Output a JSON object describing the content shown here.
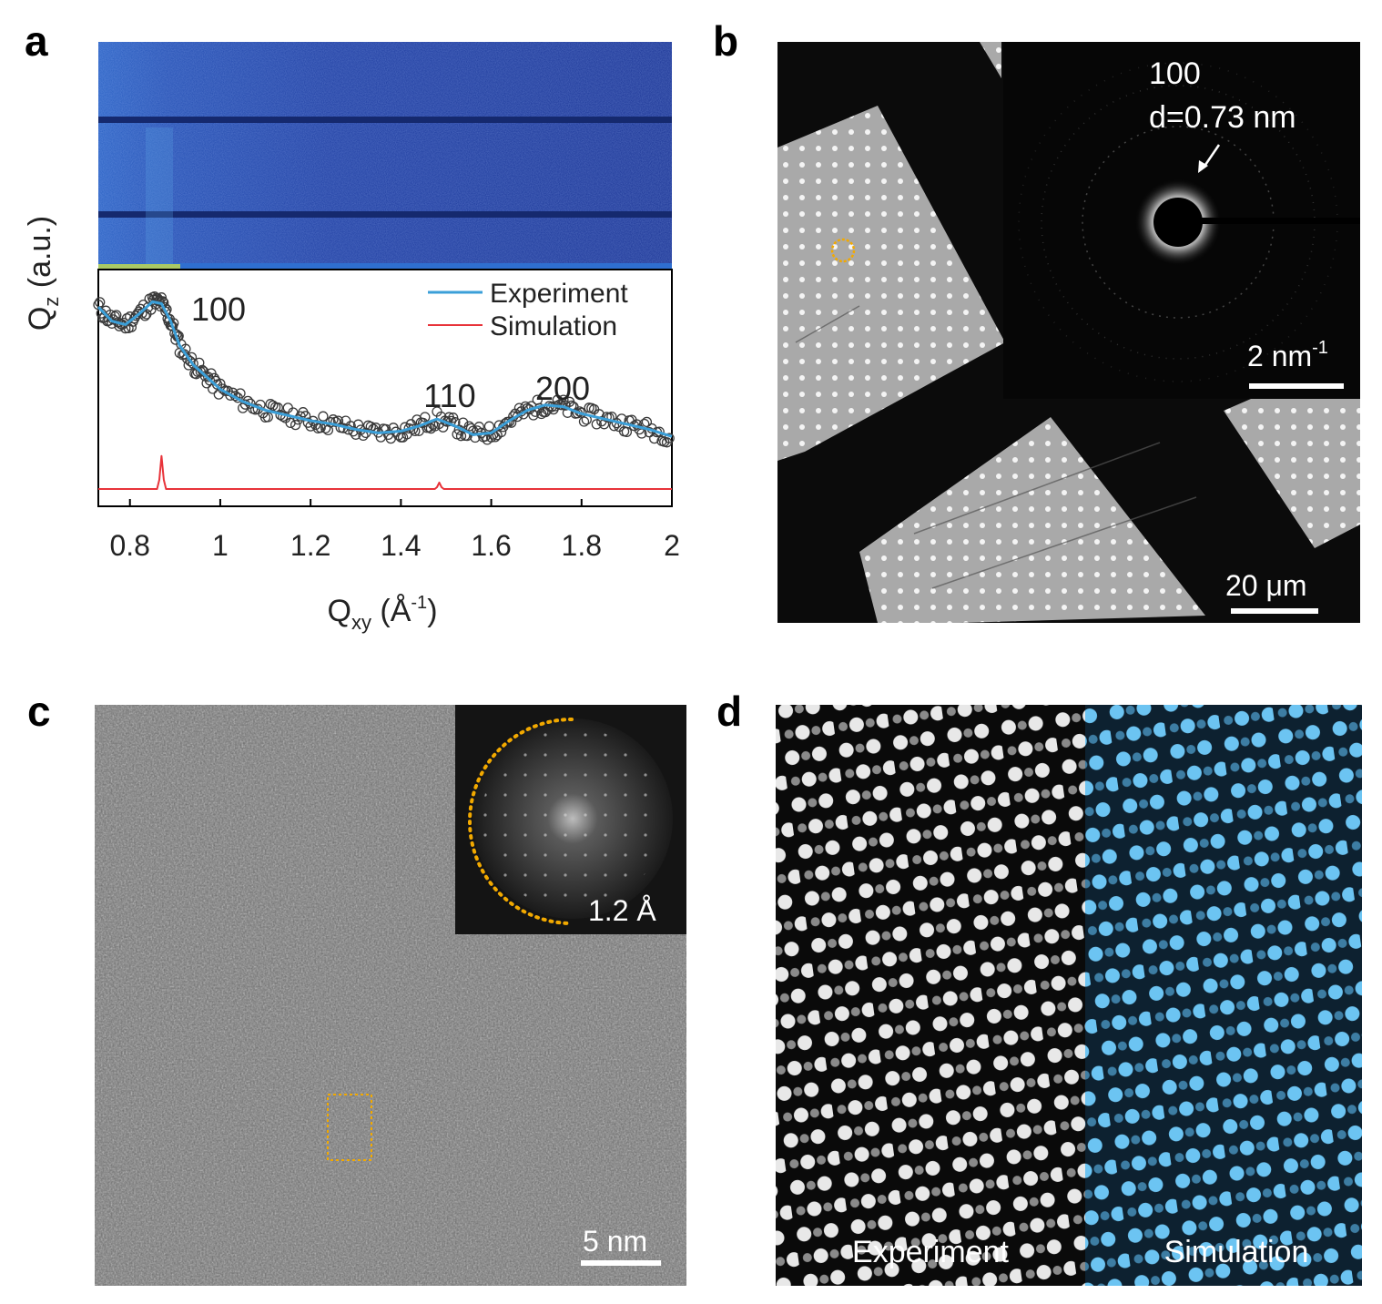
{
  "panels": {
    "a": {
      "letter": "a"
    },
    "b": {
      "letter": "b"
    },
    "c": {
      "letter": "c"
    },
    "d": {
      "letter": "d"
    }
  },
  "colors": {
    "experiment": "#3b9fd8",
    "simulation": "#e8333a",
    "heatmap_bg": "#1e3c9a",
    "highlight": "#f2a900",
    "sim_image": "#5db8e8"
  },
  "chart_data": {
    "type": "line",
    "xlabel_main": "Q",
    "xlabel_sub": "xy",
    "xlabel_unit": " (Å",
    "xlabel_exp": "-1",
    "xlabel_close": ")",
    "ylabel_main": "Q",
    "ylabel_sub": "z",
    "ylabel_unit": " (a.u.)",
    "xlim": [
      0.73,
      2.0
    ],
    "ticks": [
      "0.8",
      "1",
      "1.2",
      "1.4",
      "1.6",
      "1.8",
      "2"
    ],
    "tick_values": [
      0.8,
      1.0,
      1.2,
      1.4,
      1.6,
      1.8,
      2.0
    ],
    "legend": [
      "Experiment",
      "Simulation"
    ],
    "legend_position": "top-right",
    "peak_labels": [
      {
        "text": "100",
        "x": 0.86
      },
      {
        "text": "110",
        "x": 1.48
      },
      {
        "text": "200",
        "x": 1.75
      }
    ],
    "series": [
      {
        "name": "Experiment",
        "x": [
          0.73,
          0.76,
          0.79,
          0.82,
          0.85,
          0.87,
          0.89,
          0.91,
          0.94,
          0.97,
          1.0,
          1.05,
          1.1,
          1.15,
          1.2,
          1.25,
          1.3,
          1.35,
          1.4,
          1.44,
          1.48,
          1.52,
          1.56,
          1.6,
          1.64,
          1.68,
          1.72,
          1.76,
          1.8,
          1.85,
          1.9,
          1.95,
          2.0
        ],
        "y": [
          0.9,
          0.82,
          0.8,
          0.86,
          0.93,
          0.92,
          0.82,
          0.68,
          0.57,
          0.5,
          0.43,
          0.36,
          0.31,
          0.28,
          0.25,
          0.23,
          0.2,
          0.18,
          0.19,
          0.22,
          0.26,
          0.22,
          0.17,
          0.18,
          0.25,
          0.31,
          0.34,
          0.33,
          0.29,
          0.26,
          0.23,
          0.2,
          0.16
        ]
      },
      {
        "name": "Simulation",
        "x": [
          0.73,
          0.86,
          0.865,
          0.87,
          0.875,
          0.88,
          1.475,
          1.48,
          1.485,
          1.49,
          1.495,
          2.0
        ],
        "y": [
          0.0,
          0.0,
          0.1,
          0.36,
          0.1,
          0.0,
          0.0,
          0.02,
          0.07,
          0.02,
          0.0,
          0.0
        ]
      }
    ]
  },
  "panel_b": {
    "diffraction_index": "100",
    "d_spacing": "d=0.73 nm",
    "inset_scalebar_num": "2 nm",
    "inset_scalebar_exp": "-1",
    "main_scalebar": "20 μm"
  },
  "panel_c": {
    "fft_resolution": "1.2 Å",
    "scalebar": "5 nm"
  },
  "panel_d": {
    "left_label": "Experiment",
    "right_label": "Simulation"
  }
}
